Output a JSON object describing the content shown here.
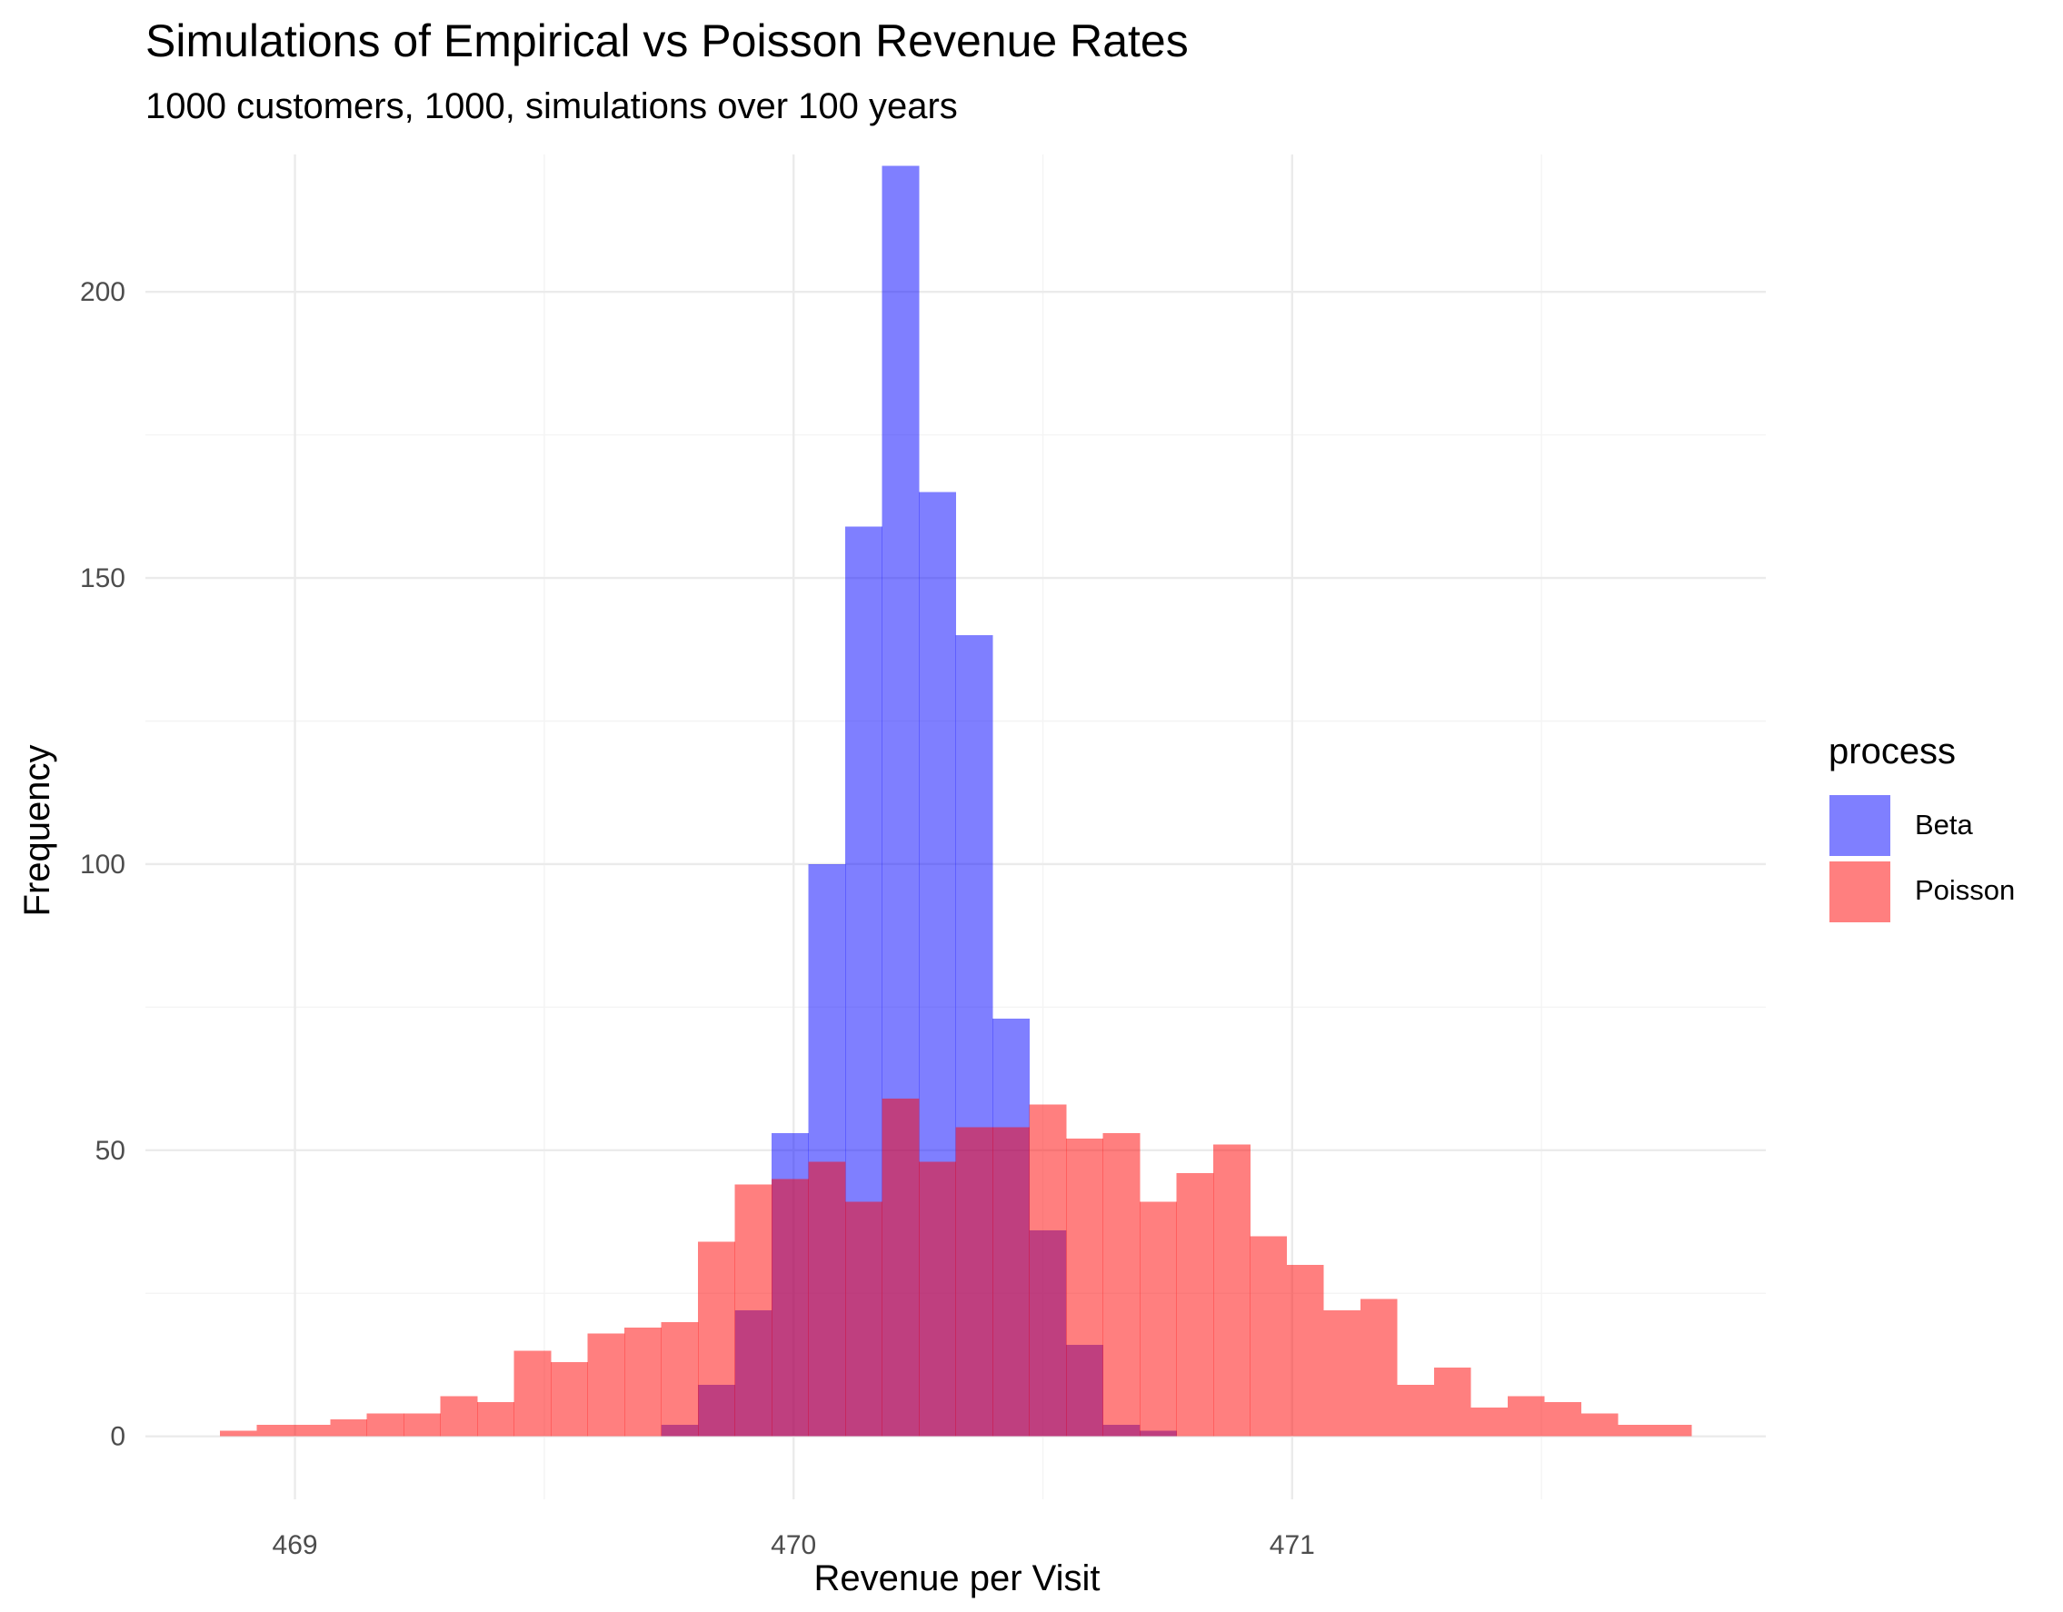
{
  "chart_data": {
    "type": "histogram",
    "title": "Simulations of Empirical vs Poisson Revenue Rates",
    "subtitle": "1000 customers, 1000, simulations over 100 years",
    "xlabel": "Revenue per Visit",
    "ylabel": "Frequency",
    "xlim": [
      468.7,
      471.95
    ],
    "ylim": [
      -11,
      224
    ],
    "x_ticks": [
      469,
      470,
      471
    ],
    "x_tick_labels": [
      "469",
      "470",
      "471"
    ],
    "y_ticks": [
      0,
      50,
      100,
      150,
      200
    ],
    "y_tick_labels": [
      "0",
      "50",
      "100",
      "150",
      "200"
    ],
    "grid": true,
    "bin_width": 0.0738,
    "legend": {
      "title": "process",
      "position": "right"
    },
    "series": [
      {
        "name": "Beta",
        "color": "#0000FF",
        "opacity": 0.5,
        "bin_start": 469.7347,
        "counts": [
          2,
          9,
          22,
          53,
          100,
          159,
          222,
          165,
          140,
          73,
          36,
          16,
          2,
          1
        ]
      },
      {
        "name": "Poisson",
        "color": "#FF0000",
        "opacity": 0.5,
        "bin_start": 468.8491,
        "counts": [
          1,
          2,
          2,
          3,
          4,
          4,
          7,
          6,
          15,
          13,
          18,
          19,
          20,
          34,
          44,
          45,
          48,
          41,
          59,
          48,
          54,
          54,
          58,
          52,
          53,
          41,
          46,
          51,
          35,
          30,
          22,
          24,
          9,
          12,
          5,
          7,
          6,
          4,
          2,
          2
        ]
      }
    ]
  }
}
